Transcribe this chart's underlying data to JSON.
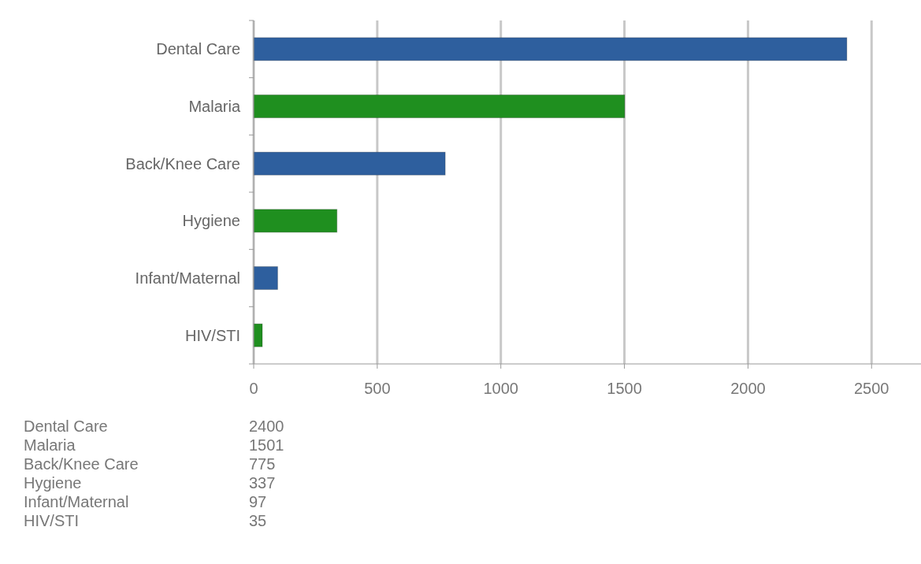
{
  "chart_data": {
    "type": "bar",
    "orientation": "horizontal",
    "categories": [
      "Dental Care",
      "Malaria",
      "Back/Knee Care",
      "Hygiene",
      "Infant/Maternal",
      "HIV/STI"
    ],
    "values": [
      2400,
      1501,
      775,
      337,
      97,
      35
    ],
    "colors": [
      "#2e5f9e",
      "#1f8f1f",
      "#2e5f9e",
      "#1f8f1f",
      "#2e5f9e",
      "#1f8f1f"
    ],
    "xlim": [
      0,
      2700
    ],
    "xticks": [
      0,
      500,
      1000,
      1500,
      2000,
      2500
    ],
    "grid": "x",
    "annotations": [
      "2400",
      "1501",
      "775",
      "337",
      "97",
      "35"
    ]
  }
}
